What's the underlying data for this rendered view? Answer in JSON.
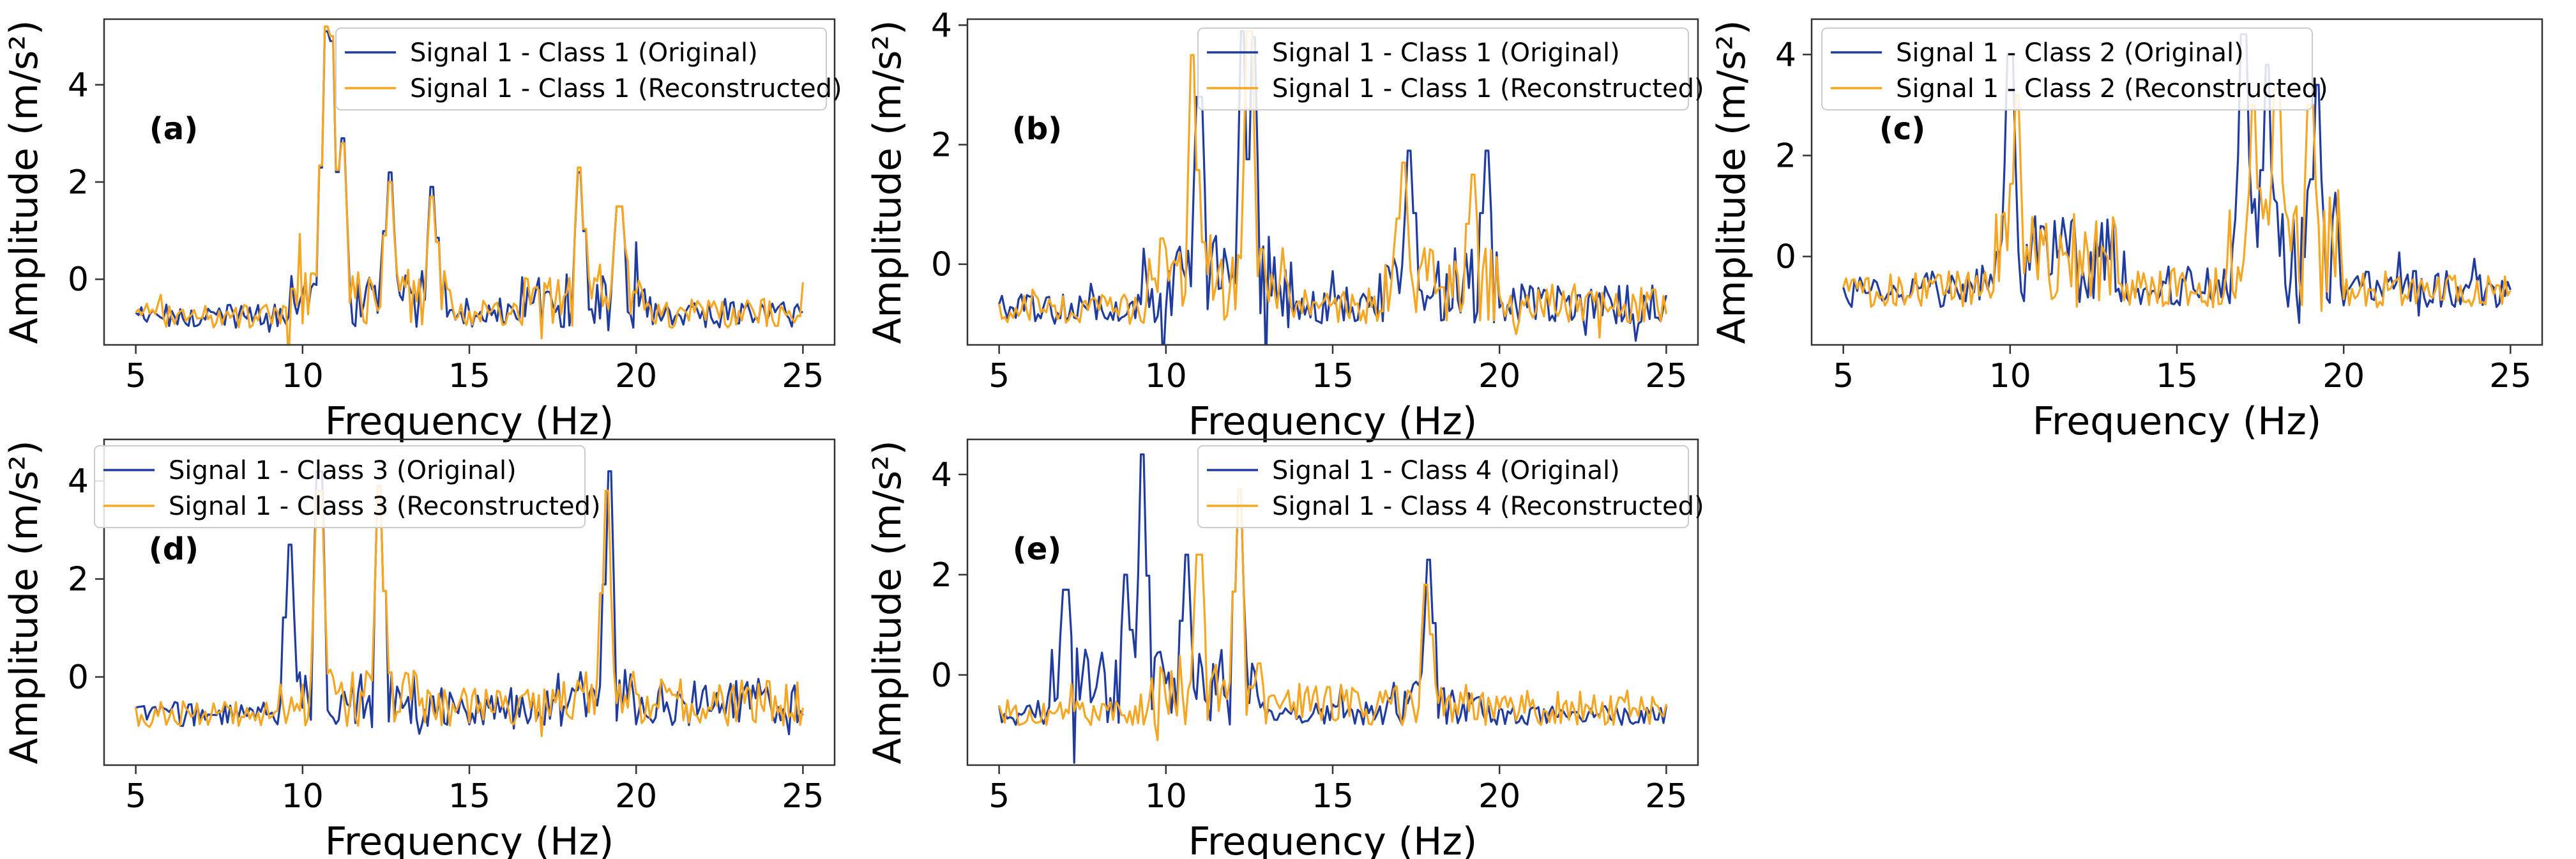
{
  "chart_data": [
    {
      "type": "line",
      "panel_label": "(a)",
      "xlabel": "Frequency (Hz)",
      "ylabel": "Amplitude (m/s²)",
      "xlim": [
        4.05,
        25.95
      ],
      "ylim": [
        -1.35,
        5.35
      ],
      "xticks": [
        5,
        10,
        15,
        20,
        25
      ],
      "yticks": [
        0,
        2,
        4
      ],
      "legend_position": "upper-right",
      "series": [
        {
          "name": "Signal 1 - Class 1 (Original)",
          "color": "#1f3c9e",
          "peaks": [
            [
              10.7,
              5.1
            ],
            [
              10.9,
              4.9
            ],
            [
              11.2,
              2.9
            ],
            [
              12.6,
              2.2
            ],
            [
              13.9,
              1.9
            ],
            [
              18.3,
              2.2
            ],
            [
              19.5,
              1.5
            ]
          ]
        },
        {
          "name": "Signal 1 - Class 1 (Reconstructed)",
          "color": "#f5a623",
          "peaks": [
            [
              10.7,
              5.2
            ],
            [
              10.9,
              5.0
            ],
            [
              11.2,
              2.8
            ],
            [
              12.6,
              2.0
            ],
            [
              13.9,
              1.7
            ],
            [
              18.3,
              2.3
            ],
            [
              19.5,
              1.5
            ]
          ]
        }
      ]
    },
    {
      "type": "line",
      "panel_label": "(b)",
      "xlabel": "Frequency (Hz)",
      "ylabel": "Amplitude (m/s²)",
      "xlim": [
        4.05,
        25.95
      ],
      "ylim": [
        -1.35,
        4.1
      ],
      "xticks": [
        5,
        10,
        15,
        20,
        25
      ],
      "yticks": [
        0,
        2,
        4
      ],
      "legend_position": "upper-right",
      "series": [
        {
          "name": "Signal 1 - Class 1 (Original)",
          "color": "#1f3c9e",
          "peaks": [
            [
              11.0,
              2.8
            ],
            [
              12.3,
              3.9
            ],
            [
              12.6,
              3.8
            ],
            [
              17.3,
              1.9
            ],
            [
              19.6,
              1.9
            ]
          ]
        },
        {
          "name": "Signal 1 - Class 1 (Reconstructed)",
          "color": "#f5a623",
          "peaks": [
            [
              10.8,
              3.5
            ],
            [
              12.5,
              3.9
            ],
            [
              17.1,
              1.7
            ],
            [
              19.2,
              1.5
            ]
          ]
        }
      ]
    },
    {
      "type": "line",
      "panel_label": "(c)",
      "xlabel": "Frequency (Hz)",
      "ylabel": "Amplitude (m/s²)",
      "xlim": [
        4.05,
        25.95
      ],
      "ylim": [
        -1.75,
        4.7
      ],
      "xticks": [
        5,
        10,
        15,
        20,
        25
      ],
      "yticks": [
        0,
        2,
        4
      ],
      "legend_position": "upper-left",
      "series": [
        {
          "name": "Signal 1 - Class 2 (Original)",
          "color": "#1f3c9e",
          "peaks": [
            [
              10.0,
              4.0
            ],
            [
              17.0,
              4.4
            ],
            [
              17.7,
              3.8
            ],
            [
              19.2,
              3.4
            ]
          ]
        },
        {
          "name": "Signal 1 - Class 2 (Reconstructed)",
          "color": "#f5a623",
          "peaks": [
            [
              10.2,
              3.2
            ],
            [
              17.3,
              3.0
            ],
            [
              18.0,
              3.3
            ],
            [
              19.0,
              3.0
            ]
          ]
        }
      ]
    },
    {
      "type": "line",
      "panel_label": "(d)",
      "xlabel": "Frequency (Hz)",
      "ylabel": "Amplitude (m/s²)",
      "xlim": [
        4.05,
        25.95
      ],
      "ylim": [
        -1.8,
        4.85
      ],
      "xticks": [
        5,
        10,
        15,
        20,
        25
      ],
      "yticks": [
        0,
        2,
        4
      ],
      "legend_position": "upper-left",
      "series": [
        {
          "name": "Signal 1 - Class 3 (Original)",
          "color": "#1f3c9e",
          "peaks": [
            [
              9.6,
              2.7
            ],
            [
              10.5,
              4.2
            ],
            [
              12.3,
              3.9
            ],
            [
              19.2,
              4.2
            ]
          ]
        },
        {
          "name": "Signal 1 - Class 3 (Reconstructed)",
          "color": "#f5a623",
          "peaks": [
            [
              10.5,
              3.8
            ],
            [
              12.3,
              3.9
            ],
            [
              19.1,
              3.8
            ]
          ]
        }
      ]
    },
    {
      "type": "line",
      "panel_label": "(e)",
      "xlabel": "Frequency (Hz)",
      "ylabel": "Amplitude (m/s²)",
      "xlim": [
        4.05,
        25.95
      ],
      "ylim": [
        -1.8,
        4.7
      ],
      "xticks": [
        5,
        10,
        15,
        20,
        25
      ],
      "yticks": [
        0,
        2,
        4
      ],
      "legend_position": "upper-right",
      "series": [
        {
          "name": "Signal 1 - Class 4 (Original)",
          "color": "#1f3c9e",
          "peaks": [
            [
              7.0,
              1.7
            ],
            [
              8.8,
              2.0
            ],
            [
              9.3,
              4.4
            ],
            [
              10.6,
              2.4
            ],
            [
              12.2,
              3.7
            ],
            [
              17.9,
              2.3
            ]
          ]
        },
        {
          "name": "Signal 1 - Class 4 (Reconstructed)",
          "color": "#f5a623",
          "peaks": [
            [
              11.0,
              2.4
            ],
            [
              12.2,
              3.7
            ],
            [
              17.8,
              1.8
            ]
          ]
        }
      ]
    }
  ]
}
